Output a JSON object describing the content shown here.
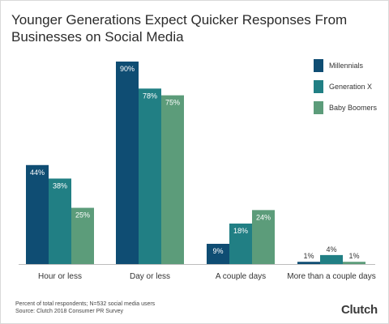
{
  "chart_data": {
    "type": "bar",
    "title": "Younger Generations Expect Quicker Responses From Businesses on Social Media",
    "categories": [
      "Hour or less",
      "Day or less",
      "A couple days",
      "More than a couple days"
    ],
    "series": [
      {
        "name": "Millennials",
        "values": [
          44,
          90,
          9,
          1
        ],
        "labels": [
          "44%",
          "90%",
          "9%",
          "1%"
        ],
        "color": "#0f4d73"
      },
      {
        "name": "Generation X",
        "values": [
          38,
          78,
          18,
          4
        ],
        "labels": [
          "38%",
          "78%",
          "18%",
          "4%"
        ],
        "color": "#217f84"
      },
      {
        "name": "Baby Boomers",
        "values": [
          25,
          75,
          24,
          1
        ],
        "labels": [
          "25%",
          "75%",
          "24%",
          "1%"
        ],
        "color": "#5c9c7a"
      }
    ],
    "ylim": [
      0,
      90
    ],
    "grid": false,
    "legend_position": "top-right"
  },
  "footnote": {
    "line1": "Percent of total respondents; N=532 social media users",
    "line2": "Source: Clutch 2018 Consumer PR Survey"
  },
  "brand": "Clutch"
}
